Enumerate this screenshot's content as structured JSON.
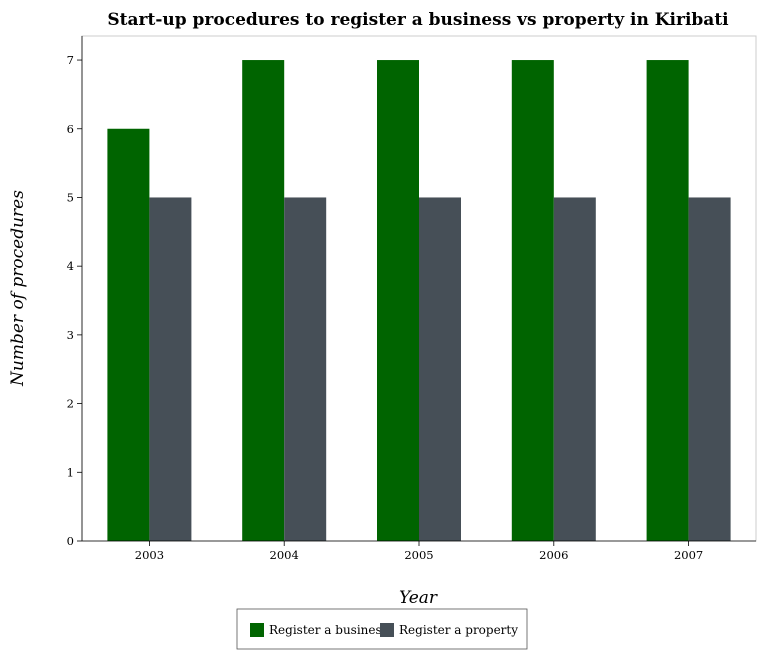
{
  "chart_data": {
    "type": "bar",
    "title": "Start-up procedures to register a business vs property in Kiribati",
    "xlabel": "Year",
    "ylabel": "Number of procedures",
    "categories": [
      "2003",
      "2004",
      "2005",
      "2006",
      "2007"
    ],
    "series": [
      {
        "name": "Register a business",
        "values": [
          6,
          7,
          7,
          7,
          7
        ],
        "color": "#006400"
      },
      {
        "name": "Register a property",
        "values": [
          5,
          5,
          5,
          5,
          5
        ],
        "color": "#464f57"
      }
    ],
    "ylim": [
      0,
      7.35
    ],
    "yticks": [
      0,
      1,
      2,
      3,
      4,
      5,
      6,
      7
    ],
    "grid": false,
    "legend_position": "bottom-center"
  }
}
